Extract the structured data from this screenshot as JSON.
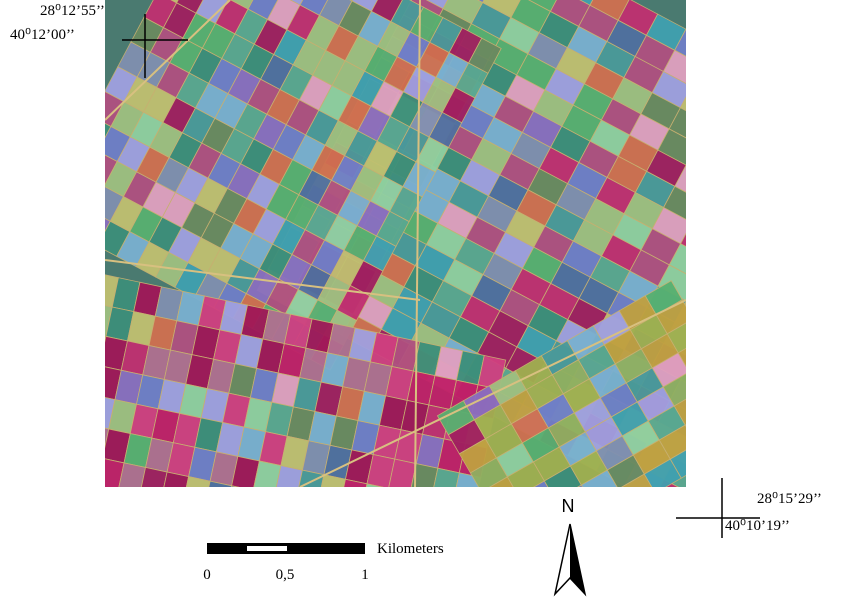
{
  "coordinates": {
    "top_left": {
      "longitude": "28⁰12’55’’",
      "latitude": "40⁰12’00’’"
    },
    "bottom_right": {
      "longitude": "28⁰15’29’’",
      "latitude": "40⁰10’19’’"
    }
  },
  "scale_bar": {
    "unit": "Kilometers",
    "ticks": [
      "0",
      "0,5",
      "1"
    ]
  },
  "north_arrow": {
    "label": "N"
  }
}
